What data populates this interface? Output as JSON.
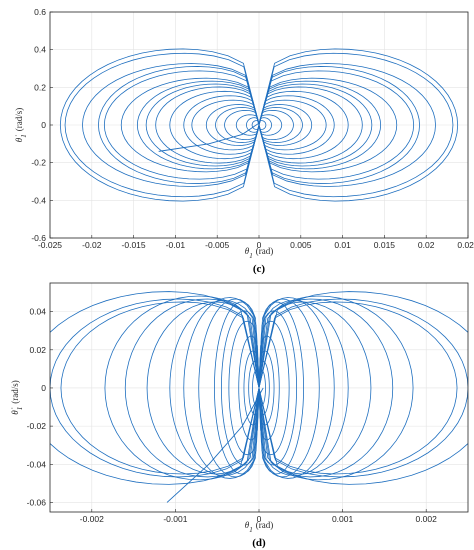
{
  "chart_data": [
    {
      "type": "line",
      "panel_label": "(c)",
      "title": "",
      "xlabel_var": "θ",
      "xlabel_sub": "1",
      "xlabel_unit": "(rad)",
      "ylabel_var": "θ̇",
      "ylabel_sub": "1",
      "ylabel_unit": "(rad/s)",
      "xlim": [
        -0.025,
        0.025
      ],
      "ylim": [
        -0.6,
        0.6
      ],
      "xticks": [
        "-0.025",
        "-0.02",
        "-0.015",
        "-0.01",
        "-0.005",
        "0",
        "0.005",
        "0.01",
        "0.015",
        "0.02",
        "0.025"
      ],
      "yticks": [
        "-0.6",
        "-0.4",
        "-0.2",
        "0",
        "0.2",
        "0.4",
        "0.6"
      ],
      "grid": true,
      "color": "#1f6fbf",
      "orbits": [
        {
          "a": 0.0245,
          "b": 0.52
        },
        {
          "a": 0.0232,
          "b": 0.49
        },
        {
          "a": 0.0205,
          "b": 0.42
        },
        {
          "a": 0.0198,
          "b": 0.4
        },
        {
          "a": 0.0185,
          "b": 0.37
        },
        {
          "a": 0.016,
          "b": 0.32
        },
        {
          "a": 0.015,
          "b": 0.3
        },
        {
          "a": 0.0135,
          "b": 0.28
        },
        {
          "a": 0.012,
          "b": 0.26
        },
        {
          "a": 0.011,
          "b": 0.23
        },
        {
          "a": 0.009,
          "b": 0.2
        },
        {
          "a": 0.0078,
          "b": 0.17
        },
        {
          "a": 0.0065,
          "b": 0.14
        },
        {
          "a": 0.0052,
          "b": 0.12
        },
        {
          "a": 0.004,
          "b": 0.1
        },
        {
          "a": 0.0028,
          "b": 0.07
        },
        {
          "a": 0.0015,
          "b": 0.05
        },
        {
          "a": 0.0008,
          "b": 0.03
        }
      ],
      "transient": [
        [
          0.0,
          0.01
        ],
        [
          -0.002,
          -0.05
        ],
        [
          -0.006,
          -0.1
        ],
        [
          -0.012,
          -0.14
        ]
      ]
    },
    {
      "type": "line",
      "panel_label": "(d)",
      "title": "",
      "xlabel_var": "θ",
      "xlabel_sub": "1",
      "xlabel_unit": "(rad)",
      "ylabel_var": "θ̇",
      "ylabel_sub": "1",
      "ylabel_unit": "(rad/s)",
      "xlim": [
        -0.0025,
        0.0025
      ],
      "ylim": [
        -0.065,
        0.055
      ],
      "xticks": [
        "-0.002",
        "-0.001",
        "0",
        "0.001",
        "0.002"
      ],
      "yticks": [
        "-0.06",
        "-0.04",
        "-0.02",
        "0",
        "0.02",
        "0.04"
      ],
      "grid": true,
      "color": "#1f6fbf",
      "orbits": [
        {
          "a": 0.0029,
          "b": 0.065
        },
        {
          "a": 0.0025,
          "b": 0.06
        },
        {
          "a": 0.0023,
          "b": 0.058
        },
        {
          "a": 0.0019,
          "b": 0.062
        },
        {
          "a": 0.0016,
          "b": 0.06
        },
        {
          "a": 0.0013,
          "b": 0.058
        },
        {
          "a": 0.0011,
          "b": 0.059
        },
        {
          "a": 0.0009,
          "b": 0.061
        },
        {
          "a": 0.0007,
          "b": 0.06
        },
        {
          "a": 0.00055,
          "b": 0.058
        },
        {
          "a": 0.00045,
          "b": 0.052
        },
        {
          "a": 0.00035,
          "b": 0.045
        },
        {
          "a": 0.00025,
          "b": 0.035
        },
        {
          "a": 0.00018,
          "b": 0.025
        },
        {
          "a": 0.00012,
          "b": 0.018
        },
        {
          "a": 8e-05,
          "b": 0.012
        }
      ],
      "transient": [
        [
          5e-05,
          0.0
        ],
        [
          -0.0002,
          -0.02
        ],
        [
          -0.0006,
          -0.04
        ],
        [
          -0.0011,
          -0.06
        ]
      ]
    }
  ]
}
